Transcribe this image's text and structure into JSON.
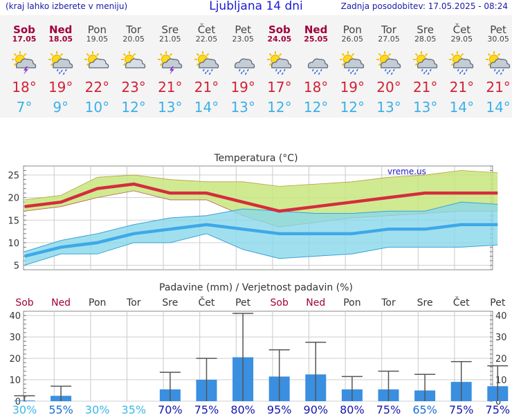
{
  "header": {
    "left_note": "(kraj lahko izberete v meniju)",
    "title": "Ljubljana 14 dni",
    "updated": "Zadnja posodobitev: 17.05.2025 - 08:24"
  },
  "days": [
    {
      "name": "Sob",
      "date": "17.05",
      "weekend": true,
      "icon": "sun-cloud-lightning-icon",
      "tmax": "18°",
      "tmin": "7°"
    },
    {
      "name": "Ned",
      "date": "18.05",
      "weekend": true,
      "icon": "sun-cloud-rain-icon",
      "tmax": "19°",
      "tmin": "9°"
    },
    {
      "name": "Pon",
      "date": "19.05",
      "weekend": false,
      "icon": "sun-cloud-icon",
      "tmax": "22°",
      "tmin": "10°"
    },
    {
      "name": "Tor",
      "date": "20.05",
      "weekend": false,
      "icon": "sun-cloud-icon",
      "tmax": "23°",
      "tmin": "12°"
    },
    {
      "name": "Sre",
      "date": "21.05",
      "weekend": false,
      "icon": "sun-cloud-lightning-icon",
      "tmax": "21°",
      "tmin": "13°"
    },
    {
      "name": "Čet",
      "date": "22.05",
      "weekend": false,
      "icon": "sun-cloud-rain-icon",
      "tmax": "21°",
      "tmin": "14°"
    },
    {
      "name": "Pet",
      "date": "23.05",
      "weekend": false,
      "icon": "cloud-rain-icon",
      "tmax": "19°",
      "tmin": "13°"
    },
    {
      "name": "Sob",
      "date": "24.05",
      "weekend": true,
      "icon": "sun-cloud-rain-icon",
      "tmax": "17°",
      "tmin": "12°"
    },
    {
      "name": "Ned",
      "date": "25.05",
      "weekend": true,
      "icon": "cloud-rain-icon",
      "tmax": "18°",
      "tmin": "12°"
    },
    {
      "name": "Pon",
      "date": "26.05",
      "weekend": false,
      "icon": "sun-cloud-rain-icon",
      "tmax": "19°",
      "tmin": "12°"
    },
    {
      "name": "Tor",
      "date": "27.05",
      "weekend": false,
      "icon": "sun-cloud-rain-icon",
      "tmax": "20°",
      "tmin": "13°"
    },
    {
      "name": "Sre",
      "date": "28.05",
      "weekend": false,
      "icon": "sun-cloud-rain-icon",
      "tmax": "21°",
      "tmin": "13°"
    },
    {
      "name": "Čet",
      "date": "29.05",
      "weekend": false,
      "icon": "sun-cloud-rain-icon",
      "tmax": "21°",
      "tmin": "14°"
    },
    {
      "name": "Pet",
      "date": "30.05",
      "weekend": false,
      "icon": "sun-cloud-rain-icon",
      "tmax": "21°",
      "tmin": "14°"
    }
  ],
  "chart_data": [
    {
      "type": "line",
      "title": "Temperatura (°C)",
      "watermark": "vreme.us",
      "ylim": [
        4,
        27
      ],
      "yticks": [
        5,
        10,
        15,
        20,
        25
      ],
      "grid": true,
      "series": [
        {
          "values": [
            18,
            19,
            22,
            23,
            21,
            21,
            19,
            17,
            18,
            19,
            20,
            21,
            21,
            21
          ],
          "color": "#d42d3d",
          "band_low": [
            17,
            18,
            20,
            21.5,
            19.5,
            19.5,
            16,
            13.5,
            14.5,
            15.5,
            16,
            16.5,
            17,
            17
          ],
          "band_high": [
            19.5,
            20.5,
            24.5,
            25,
            24,
            23.5,
            23.5,
            22.5,
            23,
            23.5,
            24.5,
            25,
            26,
            25.5
          ],
          "band_color": "#c8e67e"
        },
        {
          "values": [
            7,
            9,
            10,
            12,
            13,
            14,
            13,
            12,
            12,
            12,
            13,
            13,
            14,
            14
          ],
          "color": "#3ea8e8",
          "band_low": [
            5,
            7.5,
            7.5,
            10,
            10,
            12,
            8.5,
            6.5,
            7,
            7.5,
            9,
            9,
            9,
            9.5
          ],
          "band_high": [
            8,
            10.5,
            12,
            14,
            15.5,
            16,
            17.5,
            17,
            16.5,
            16.5,
            17,
            17,
            19,
            18.5
          ],
          "band_color": "#88d8ea"
        }
      ]
    },
    {
      "type": "bar",
      "title": "Padavine (mm) / Verjetnost padavin (%)",
      "categories": [
        "Sob",
        "Ned",
        "Pon",
        "Tor",
        "Sre",
        "Čet",
        "Pet",
        "Sob",
        "Ned",
        "Pon",
        "Tor",
        "Sre",
        "Čet",
        "Pet"
      ],
      "weekend": [
        true,
        true,
        false,
        false,
        false,
        false,
        false,
        true,
        true,
        false,
        false,
        false,
        false,
        false
      ],
      "values": [
        0.3,
        2.5,
        0,
        0,
        5.5,
        10,
        20.5,
        11.5,
        12.5,
        5.5,
        5.5,
        5,
        9,
        7
      ],
      "error_low": [
        0,
        0,
        0,
        0,
        0,
        0,
        0,
        0,
        0,
        0,
        0,
        0,
        0,
        0
      ],
      "error_high": [
        2.5,
        7,
        0,
        0,
        13.5,
        20,
        41,
        24,
        27.5,
        11.5,
        14,
        12.5,
        18.5,
        16.5
      ],
      "probability": [
        "30%",
        "55%",
        "30%",
        "35%",
        "70%",
        "75%",
        "80%",
        "95%",
        "90%",
        "80%",
        "75%",
        "65%",
        "75%",
        "75%"
      ],
      "ylim": [
        0,
        42
      ],
      "yticks": [
        0,
        10,
        20,
        30,
        40
      ],
      "bar_color": "#3a8fe0",
      "grid": true
    }
  ]
}
